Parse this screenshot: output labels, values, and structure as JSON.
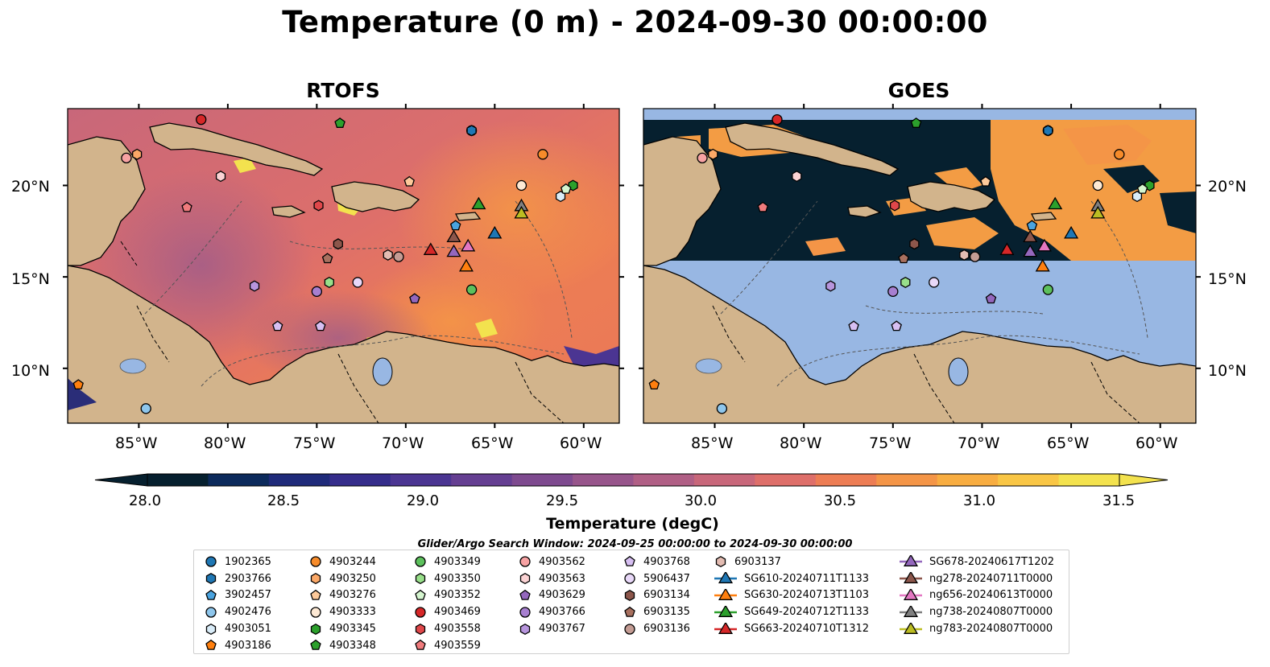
{
  "title": "Temperature (0 m) - 2024-09-30 00:00:00",
  "panels": [
    {
      "title": "RTOFS"
    },
    {
      "title": "GOES"
    }
  ],
  "axes": {
    "lon_labels": [
      "85°W",
      "80°W",
      "75°W",
      "70°W",
      "65°W",
      "60°W"
    ],
    "lat_labels": [
      "20°N",
      "15°N",
      "10°N"
    ]
  },
  "colorbar": {
    "label": "Temperature (degC)",
    "ticks": [
      "28.0",
      "28.5",
      "29.0",
      "29.5",
      "30.0",
      "30.5",
      "31.0",
      "31.5"
    ],
    "min": 28.0,
    "max": 31.5,
    "step": 0.25,
    "colors": [
      "#06202f",
      "#0c2a5c",
      "#1f2a7a",
      "#352d8b",
      "#4b3592",
      "#653f92",
      "#7e4a8f",
      "#97558b",
      "#b05f85",
      "#c8677a",
      "#de6f6a",
      "#ed7d54",
      "#f49547",
      "#f8ad41",
      "#f9c645",
      "#f3e24e"
    ]
  },
  "search_window": "Glider/Argo Search Window: 2024-09-25 00:00:00 to 2024-09-30 00:00:00",
  "legend": [
    {
      "label": "1902365",
      "color": "#1f77b4",
      "marker": "circle"
    },
    {
      "label": "2903766",
      "color": "#1f77b4",
      "marker": "hexagon"
    },
    {
      "label": "3902457",
      "color": "#4aa3df",
      "marker": "pentagon"
    },
    {
      "label": "4902476",
      "color": "#8ec6ec",
      "marker": "circle"
    },
    {
      "label": "4903051",
      "color": "#d9ecf8",
      "marker": "hexagon"
    },
    {
      "label": "4903186",
      "color": "#ff7f0e",
      "marker": "pentagon"
    },
    {
      "label": "4903244",
      "color": "#f68b2a",
      "marker": "circle"
    },
    {
      "label": "4903250",
      "color": "#fba867",
      "marker": "hexagon"
    },
    {
      "label": "4903276",
      "color": "#fdc99a",
      "marker": "pentagon"
    },
    {
      "label": "4903333",
      "color": "#fde9d4",
      "marker": "circle"
    },
    {
      "label": "4903345",
      "color": "#2ca02c",
      "marker": "hexagon"
    },
    {
      "label": "4903348",
      "color": "#2ca02c",
      "marker": "pentagon"
    },
    {
      "label": "4903349",
      "color": "#5cc05c",
      "marker": "circle"
    },
    {
      "label": "4903350",
      "color": "#98df8a",
      "marker": "hexagon"
    },
    {
      "label": "4903352",
      "color": "#d5f5cf",
      "marker": "pentagon"
    },
    {
      "label": "4903469",
      "color": "#d62728",
      "marker": "circle"
    },
    {
      "label": "4903558",
      "color": "#e0474a",
      "marker": "hexagon"
    },
    {
      "label": "4903559",
      "color": "#f07b7d",
      "marker": "pentagon"
    },
    {
      "label": "4903562",
      "color": "#f7a2a3",
      "marker": "circle"
    },
    {
      "label": "4903563",
      "color": "#fbd3d4",
      "marker": "hexagon"
    },
    {
      "label": "4903629",
      "color": "#9467bd",
      "marker": "pentagon"
    },
    {
      "label": "4903766",
      "color": "#a77fd0",
      "marker": "circle"
    },
    {
      "label": "4903767",
      "color": "#b795dd",
      "marker": "hexagon"
    },
    {
      "label": "4903768",
      "color": "#d7bff2",
      "marker": "pentagon"
    },
    {
      "label": "5906437",
      "color": "#e8d8f8",
      "marker": "circle"
    },
    {
      "label": "6903134",
      "color": "#8c564b",
      "marker": "hexagon"
    },
    {
      "label": "6903135",
      "color": "#a8705f",
      "marker": "pentagon"
    },
    {
      "label": "6903136",
      "color": "#c49c94",
      "marker": "circle"
    },
    {
      "label": "6903137",
      "color": "#e3bcb2",
      "marker": "hexagon"
    },
    {
      "label": "SG610-20240711T1133",
      "color": "#1f77b4",
      "marker": "triangle"
    },
    {
      "label": "SG630-20240713T1103",
      "color": "#ff7f0e",
      "marker": "triangle"
    },
    {
      "label": "SG649-20240712T1133",
      "color": "#2ca02c",
      "marker": "triangle"
    },
    {
      "label": "SG663-20240710T1312",
      "color": "#d62728",
      "marker": "triangle"
    },
    {
      "label": "SG678-20240617T1202",
      "color": "#9467bd",
      "marker": "triangle"
    },
    {
      "label": "ng278-20240711T0000",
      "color": "#8c564b",
      "marker": "triangle"
    },
    {
      "label": "ng656-20240613T0000",
      "color": "#e377c2",
      "marker": "triangle"
    },
    {
      "label": "ng738-20240807T0000",
      "color": "#7f7f7f",
      "marker": "triangle"
    },
    {
      "label": "ng783-20240807T0000",
      "color": "#bcbd22",
      "marker": "triangle"
    }
  ],
  "observations": [
    {
      "id": "1902365",
      "lon": -66.3,
      "lat": 23.0
    },
    {
      "id": "2903766",
      "lon": -66.3,
      "lat": 23.0
    },
    {
      "id": "3902457",
      "lon": -67.2,
      "lat": 17.8
    },
    {
      "id": "4902476",
      "lon": -84.6,
      "lat": 7.8
    },
    {
      "id": "4903051",
      "lon": -61.3,
      "lat": 19.4
    },
    {
      "id": "4903186",
      "lon": -88.4,
      "lat": 9.1
    },
    {
      "id": "4903244",
      "lon": -62.3,
      "lat": 21.7
    },
    {
      "id": "4903250",
      "lon": -85.1,
      "lat": 21.7
    },
    {
      "id": "4903276",
      "lon": -69.8,
      "lat": 20.2
    },
    {
      "id": "4903333",
      "lon": -63.5,
      "lat": 20.0
    },
    {
      "id": "4903345",
      "lon": -60.6,
      "lat": 20.0
    },
    {
      "id": "4903348",
      "lon": -73.7,
      "lat": 23.4
    },
    {
      "id": "4903349",
      "lon": -66.3,
      "lat": 14.3
    },
    {
      "id": "4903350",
      "lon": -74.3,
      "lat": 14.7
    },
    {
      "id": "4903352",
      "lon": -61.0,
      "lat": 19.8
    },
    {
      "id": "4903469",
      "lon": -81.5,
      "lat": 23.6
    },
    {
      "id": "4903558",
      "lon": -74.9,
      "lat": 18.9
    },
    {
      "id": "4903559",
      "lon": -82.3,
      "lat": 18.8
    },
    {
      "id": "4903562",
      "lon": -85.7,
      "lat": 21.5
    },
    {
      "id": "4903563",
      "lon": -80.4,
      "lat": 20.5
    },
    {
      "id": "4903629",
      "lon": -69.5,
      "lat": 13.8
    },
    {
      "id": "4903766",
      "lon": -75.0,
      "lat": 14.2
    },
    {
      "id": "4903767",
      "lon": -78.5,
      "lat": 14.5
    },
    {
      "id": "4903768",
      "lon": -74.8,
      "lat": 12.3
    },
    {
      "id": "5906437",
      "lon": -72.7,
      "lat": 14.7
    },
    {
      "id": "6903134",
      "lon": -73.8,
      "lat": 16.8
    },
    {
      "id": "6903135",
      "lon": -74.4,
      "lat": 16.0
    },
    {
      "id": "6903136",
      "lon": -70.4,
      "lat": 16.1
    },
    {
      "id": "6903137",
      "lon": -71.0,
      "lat": 16.2
    },
    {
      "id": "4903768b",
      "lon": -77.2,
      "lat": 12.3
    },
    {
      "id": "SG610-20240711T1133",
      "lon": -65.0,
      "lat": 17.4
    },
    {
      "id": "SG630-20240713T1103",
      "lon": -66.6,
      "lat": 15.6
    },
    {
      "id": "SG649-20240712T1133",
      "lon": -65.9,
      "lat": 19.0
    },
    {
      "id": "SG663-20240710T1312",
      "lon": -68.6,
      "lat": 16.5
    },
    {
      "id": "SG678-20240617T1202",
      "lon": -67.3,
      "lat": 16.4
    },
    {
      "id": "ng278-20240711T0000",
      "lon": -67.3,
      "lat": 17.2
    },
    {
      "id": "ng656-20240613T0000",
      "lon": -66.5,
      "lat": 16.7
    },
    {
      "id": "ng738-20240807T0000",
      "lon": -63.5,
      "lat": 18.9
    },
    {
      "id": "ng783-20240807T0000",
      "lon": -63.5,
      "lat": 18.5
    }
  ],
  "map_extent": {
    "lon_min": -89.0,
    "lon_max": -58.0,
    "lat_min": 7.0,
    "lat_max": 24.2
  },
  "goes_coverage_lat_min": 16.0,
  "colors": {
    "land": "#d2b48c",
    "ocean_nodata": "#98b7e3",
    "cold": "#06202f",
    "warm": "#f39c44"
  }
}
